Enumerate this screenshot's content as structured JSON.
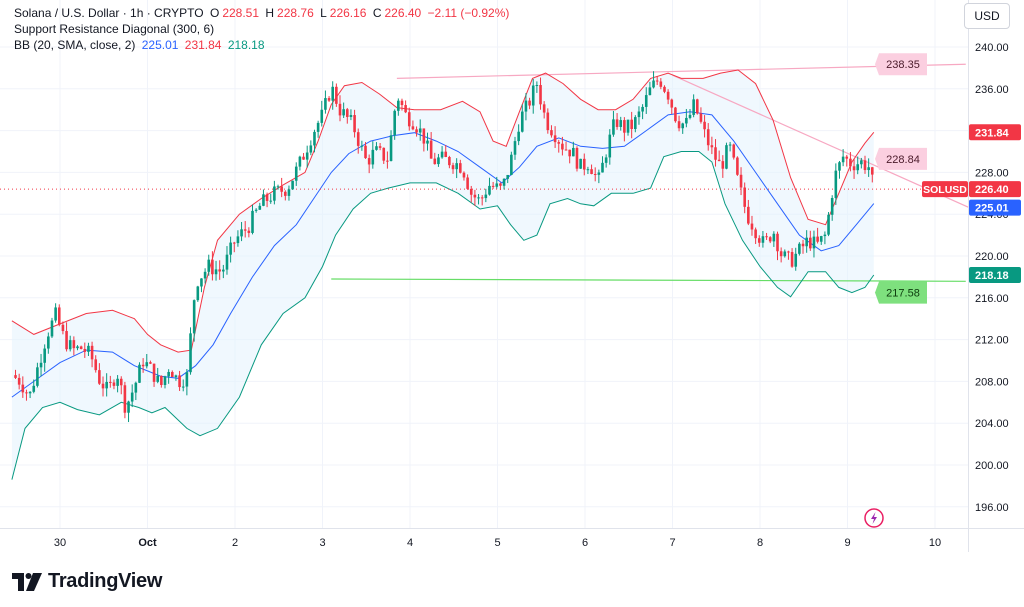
{
  "header": {
    "symbol_title": "Solana / U.S. Dollar · 1h · CRYPTO",
    "o_key": "O",
    "o_val": "228.51",
    "h_key": "H",
    "h_val": "228.76",
    "l_key": "L",
    "l_val": "226.16",
    "c_key": "C",
    "c_val": "226.40",
    "change": "−2.11 (−0.92%)",
    "indicator_1": "Support Resistance Diagonal (300, 6)",
    "bb_title": "BB (20, SMA, close, 2)",
    "bb_basis": "225.01",
    "bb_upper": "231.84",
    "bb_lower": "218.18"
  },
  "currency": "USD",
  "brand": "TradingView",
  "colors": {
    "up": "#089981",
    "down": "#f23645",
    "basis": "#2962ff",
    "band_fill": "#e3f2fd",
    "resistance": "#f7a8c2",
    "support": "#66dd66"
  },
  "chart_data": {
    "type": "candlestick",
    "symbol": "SOLUSD",
    "timeframe": "1h",
    "ylim": [
      193,
      242
    ],
    "y_ticks": [
      "240.00",
      "236.00",
      "232.00",
      "228.00",
      "224.00",
      "220.00",
      "216.00",
      "212.00",
      "208.00",
      "204.00",
      "200.00",
      "196.00"
    ],
    "x_ticks": [
      "30",
      "Oct",
      "2",
      "3",
      "4",
      "5",
      "6",
      "7",
      "8",
      "9",
      "10"
    ],
    "x_tick_days": [
      0,
      1,
      2,
      3,
      4,
      5,
      6,
      7,
      8,
      9,
      10
    ],
    "x_start_day": -0.55,
    "x_end_day": 10.4,
    "close_path": [
      [
        -0.55,
        208.6
      ],
      [
        -0.45,
        208.0
      ],
      [
        -0.35,
        206.5
      ],
      [
        -0.25,
        209.5
      ],
      [
        -0.15,
        212.5
      ],
      [
        -0.05,
        214.3
      ],
      [
        0.05,
        212.0
      ],
      [
        0.15,
        211.0
      ],
      [
        0.25,
        211.2
      ],
      [
        0.35,
        210.5
      ],
      [
        0.45,
        208.2
      ],
      [
        0.55,
        207.0
      ],
      [
        0.65,
        209.0
      ],
      [
        0.75,
        205.5
      ],
      [
        0.85,
        207.5
      ],
      [
        0.95,
        210.0
      ],
      [
        1.05,
        209.0
      ],
      [
        1.15,
        207.5
      ],
      [
        1.25,
        209.5
      ],
      [
        1.35,
        208.0
      ],
      [
        1.45,
        208.5
      ],
      [
        1.55,
        217.5
      ],
      [
        1.7,
        219.0
      ],
      [
        1.85,
        218.5
      ],
      [
        2.0,
        221.5
      ],
      [
        2.15,
        222.8
      ],
      [
        2.3,
        225.0
      ],
      [
        2.45,
        226.0
      ],
      [
        2.6,
        226.5
      ],
      [
        2.75,
        229.0
      ],
      [
        2.9,
        232.0
      ],
      [
        3.0,
        233.5
      ],
      [
        3.1,
        236.2
      ],
      [
        3.2,
        234.0
      ],
      [
        3.35,
        232.5
      ],
      [
        3.5,
        229.0
      ],
      [
        3.6,
        230.0
      ],
      [
        3.75,
        229.3
      ],
      [
        3.85,
        235.5
      ],
      [
        3.95,
        233.5
      ],
      [
        4.05,
        232.8
      ],
      [
        4.15,
        231.5
      ],
      [
        4.25,
        229.0
      ],
      [
        4.35,
        229.3
      ],
      [
        4.5,
        229.0
      ],
      [
        4.6,
        228.5
      ],
      [
        4.7,
        226.0
      ],
      [
        4.8,
        225.2
      ],
      [
        4.9,
        226.8
      ],
      [
        5.05,
        226.3
      ],
      [
        5.15,
        229.0
      ],
      [
        5.25,
        233.0
      ],
      [
        5.35,
        234.5
      ],
      [
        5.45,
        236.5
      ],
      [
        5.55,
        233.0
      ],
      [
        5.65,
        231.8
      ],
      [
        5.75,
        230.5
      ],
      [
        5.85,
        230.0
      ],
      [
        5.95,
        228.5
      ],
      [
        6.05,
        229.0
      ],
      [
        6.15,
        227.0
      ],
      [
        6.25,
        230.3
      ],
      [
        6.35,
        233.0
      ],
      [
        6.45,
        232.2
      ],
      [
        6.55,
        232.5
      ],
      [
        6.65,
        234.0
      ],
      [
        6.75,
        236.0
      ],
      [
        6.85,
        237.0
      ],
      [
        6.95,
        235.5
      ],
      [
        7.05,
        233.0
      ],
      [
        7.15,
        232.5
      ],
      [
        7.25,
        234.5
      ],
      [
        7.35,
        232.0
      ],
      [
        7.45,
        230.0
      ],
      [
        7.55,
        228.5
      ],
      [
        7.65,
        230.5
      ],
      [
        7.75,
        227.0
      ],
      [
        7.85,
        224.0
      ],
      [
        7.95,
        222.5
      ],
      [
        8.05,
        221.0
      ],
      [
        8.15,
        222.5
      ],
      [
        8.25,
        220.0
      ],
      [
        8.35,
        219.5
      ],
      [
        8.45,
        220.5
      ],
      [
        8.55,
        221.5
      ],
      [
        8.65,
        221.0
      ],
      [
        8.75,
        222.0
      ],
      [
        8.85,
        227.5
      ],
      [
        8.95,
        229.5
      ],
      [
        9.05,
        228.8
      ],
      [
        9.15,
        229.0
      ],
      [
        9.25,
        228.5
      ],
      [
        9.3,
        226.4
      ]
    ],
    "bb_upper_path": [
      [
        -0.55,
        213.8
      ],
      [
        -0.3,
        212.5
      ],
      [
        0.0,
        213.5
      ],
      [
        0.3,
        214.5
      ],
      [
        0.6,
        214.8
      ],
      [
        0.85,
        214.0
      ],
      [
        1.0,
        212.5
      ],
      [
        1.15,
        211.5
      ],
      [
        1.35,
        210.8
      ],
      [
        1.5,
        211.0
      ],
      [
        1.65,
        217.0
      ],
      [
        1.8,
        221.5
      ],
      [
        2.05,
        224.0
      ],
      [
        2.3,
        225.5
      ],
      [
        2.55,
        226.8
      ],
      [
        2.8,
        228.0
      ],
      [
        2.95,
        231.0
      ],
      [
        3.1,
        234.5
      ],
      [
        3.25,
        236.3
      ],
      [
        3.45,
        236.6
      ],
      [
        3.65,
        235.5
      ],
      [
        3.85,
        234.2
      ],
      [
        4.05,
        234.0
      ],
      [
        4.35,
        234.0
      ],
      [
        4.6,
        234.8
      ],
      [
        4.8,
        233.8
      ],
      [
        4.95,
        231.0
      ],
      [
        5.1,
        230.5
      ],
      [
        5.25,
        233.8
      ],
      [
        5.4,
        237.0
      ],
      [
        5.55,
        237.5
      ],
      [
        5.75,
        236.5
      ],
      [
        5.95,
        235.0
      ],
      [
        6.15,
        234.0
      ],
      [
        6.35,
        234.0
      ],
      [
        6.55,
        235.0
      ],
      [
        6.75,
        237.0
      ],
      [
        6.95,
        237.5
      ],
      [
        7.1,
        237.0
      ],
      [
        7.35,
        237.0
      ],
      [
        7.55,
        237.5
      ],
      [
        7.75,
        237.8
      ],
      [
        7.95,
        236.5
      ],
      [
        8.15,
        233.0
      ],
      [
        8.35,
        227.5
      ],
      [
        8.55,
        223.5
      ],
      [
        8.75,
        223.0
      ],
      [
        8.9,
        226.0
      ],
      [
        9.05,
        229.0
      ],
      [
        9.2,
        230.8
      ],
      [
        9.3,
        231.84
      ]
    ],
    "bb_basis_path": [
      [
        -0.55,
        206.5
      ],
      [
        -0.3,
        208.0
      ],
      [
        0.0,
        209.8
      ],
      [
        0.3,
        211.0
      ],
      [
        0.6,
        210.8
      ],
      [
        0.85,
        209.5
      ],
      [
        1.0,
        209.0
      ],
      [
        1.15,
        208.5
      ],
      [
        1.35,
        208.3
      ],
      [
        1.55,
        209.5
      ],
      [
        1.75,
        211.5
      ],
      [
        1.95,
        214.5
      ],
      [
        2.2,
        218.0
      ],
      [
        2.45,
        221.0
      ],
      [
        2.7,
        223.0
      ],
      [
        2.9,
        225.5
      ],
      [
        3.1,
        228.0
      ],
      [
        3.3,
        229.8
      ],
      [
        3.55,
        231.0
      ],
      [
        3.8,
        231.5
      ],
      [
        4.05,
        231.8
      ],
      [
        4.3,
        231.0
      ],
      [
        4.55,
        230.0
      ],
      [
        4.8,
        228.5
      ],
      [
        5.05,
        227.0
      ],
      [
        5.25,
        228.5
      ],
      [
        5.45,
        230.5
      ],
      [
        5.7,
        231.3
      ],
      [
        5.95,
        230.5
      ],
      [
        6.2,
        230.3
      ],
      [
        6.45,
        230.5
      ],
      [
        6.7,
        232.0
      ],
      [
        6.95,
        233.5
      ],
      [
        7.2,
        233.8
      ],
      [
        7.45,
        233.5
      ],
      [
        7.7,
        231.0
      ],
      [
        7.95,
        228.0
      ],
      [
        8.2,
        225.0
      ],
      [
        8.45,
        222.0
      ],
      [
        8.7,
        220.5
      ],
      [
        8.9,
        221.0
      ],
      [
        9.1,
        223.0
      ],
      [
        9.3,
        225.01
      ]
    ],
    "bb_lower_path": [
      [
        -0.55,
        198.6
      ],
      [
        -0.4,
        203.5
      ],
      [
        -0.2,
        205.5
      ],
      [
        0.0,
        206.0
      ],
      [
        0.2,
        205.3
      ],
      [
        0.45,
        204.8
      ],
      [
        0.7,
        206.0
      ],
      [
        0.9,
        205.5
      ],
      [
        1.05,
        205.0
      ],
      [
        1.2,
        205.5
      ],
      [
        1.45,
        203.5
      ],
      [
        1.6,
        202.8
      ],
      [
        1.8,
        203.5
      ],
      [
        2.05,
        206.5
      ],
      [
        2.3,
        211.5
      ],
      [
        2.55,
        214.5
      ],
      [
        2.8,
        216.0
      ],
      [
        3.0,
        219.0
      ],
      [
        3.15,
        222.0
      ],
      [
        3.35,
        224.5
      ],
      [
        3.55,
        226.0
      ],
      [
        3.75,
        226.5
      ],
      [
        4.0,
        227.0
      ],
      [
        4.3,
        227.0
      ],
      [
        4.55,
        226.0
      ],
      [
        4.8,
        224.5
      ],
      [
        5.0,
        224.8
      ],
      [
        5.15,
        223.0
      ],
      [
        5.3,
        221.5
      ],
      [
        5.45,
        222.0
      ],
      [
        5.6,
        225.0
      ],
      [
        5.8,
        225.5
      ],
      [
        5.95,
        225.0
      ],
      [
        6.1,
        224.8
      ],
      [
        6.3,
        226.0
      ],
      [
        6.55,
        226.0
      ],
      [
        6.75,
        226.5
      ],
      [
        6.9,
        229.5
      ],
      [
        7.1,
        230.0
      ],
      [
        7.3,
        230.0
      ],
      [
        7.45,
        229.0
      ],
      [
        7.6,
        225.0
      ],
      [
        7.8,
        221.5
      ],
      [
        8.0,
        219.0
      ],
      [
        8.2,
        217.0
      ],
      [
        8.35,
        216.1
      ],
      [
        8.55,
        218.5
      ],
      [
        8.75,
        218.5
      ],
      [
        8.9,
        217.0
      ],
      [
        9.05,
        216.5
      ],
      [
        9.2,
        217.0
      ],
      [
        9.3,
        218.18
      ]
    ],
    "resistance_line": [
      [
        3.85,
        237.0
      ],
      [
        9.3,
        238.35
      ]
    ],
    "resistance_label": "238.35",
    "diagonal_resistance_line": [
      [
        7.0,
        237.3
      ],
      [
        10.4,
        224.6
      ]
    ],
    "diagonal_resistance_label": "228.84",
    "support_line": [
      [
        3.1,
        217.8
      ],
      [
        9.3,
        217.58
      ]
    ],
    "support_label": "217.58",
    "last_price_label": "SOLUSD",
    "last_price": "226.40",
    "axis_labels": {
      "bb_upper": "231.84",
      "bb_basis": "225.01",
      "bb_lower": "218.18"
    }
  }
}
